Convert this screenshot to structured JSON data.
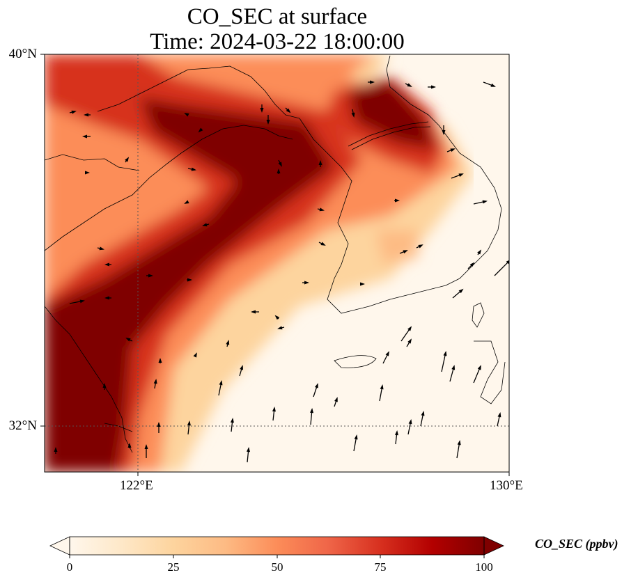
{
  "title_line1": "CO_SEC at surface",
  "title_line2": "Time: 2024-03-22 18:00:00",
  "lat_labels": [
    "40°N",
    "32°N"
  ],
  "lon_labels": [
    "122°E",
    "130°E"
  ],
  "colorbar": {
    "label": "CO_SEC (ppbv)",
    "ticks": [
      "0",
      "25",
      "50",
      "75",
      "100"
    ],
    "min": 0,
    "max": 100,
    "colormap": "OrRd",
    "colors": [
      "#fff7ec",
      "#fee8c8",
      "#fdd49e",
      "#fdbb84",
      "#fc8d59",
      "#ef6548",
      "#d7301f",
      "#b30000",
      "#7f0000"
    ],
    "extend": "both"
  },
  "map": {
    "lon_range": [
      120,
      130
    ],
    "lat_range": [
      31,
      40
    ],
    "gridlines": "dotted at 122°E and 32°N",
    "features": [
      "coastlines",
      "wind-vectors"
    ]
  }
}
